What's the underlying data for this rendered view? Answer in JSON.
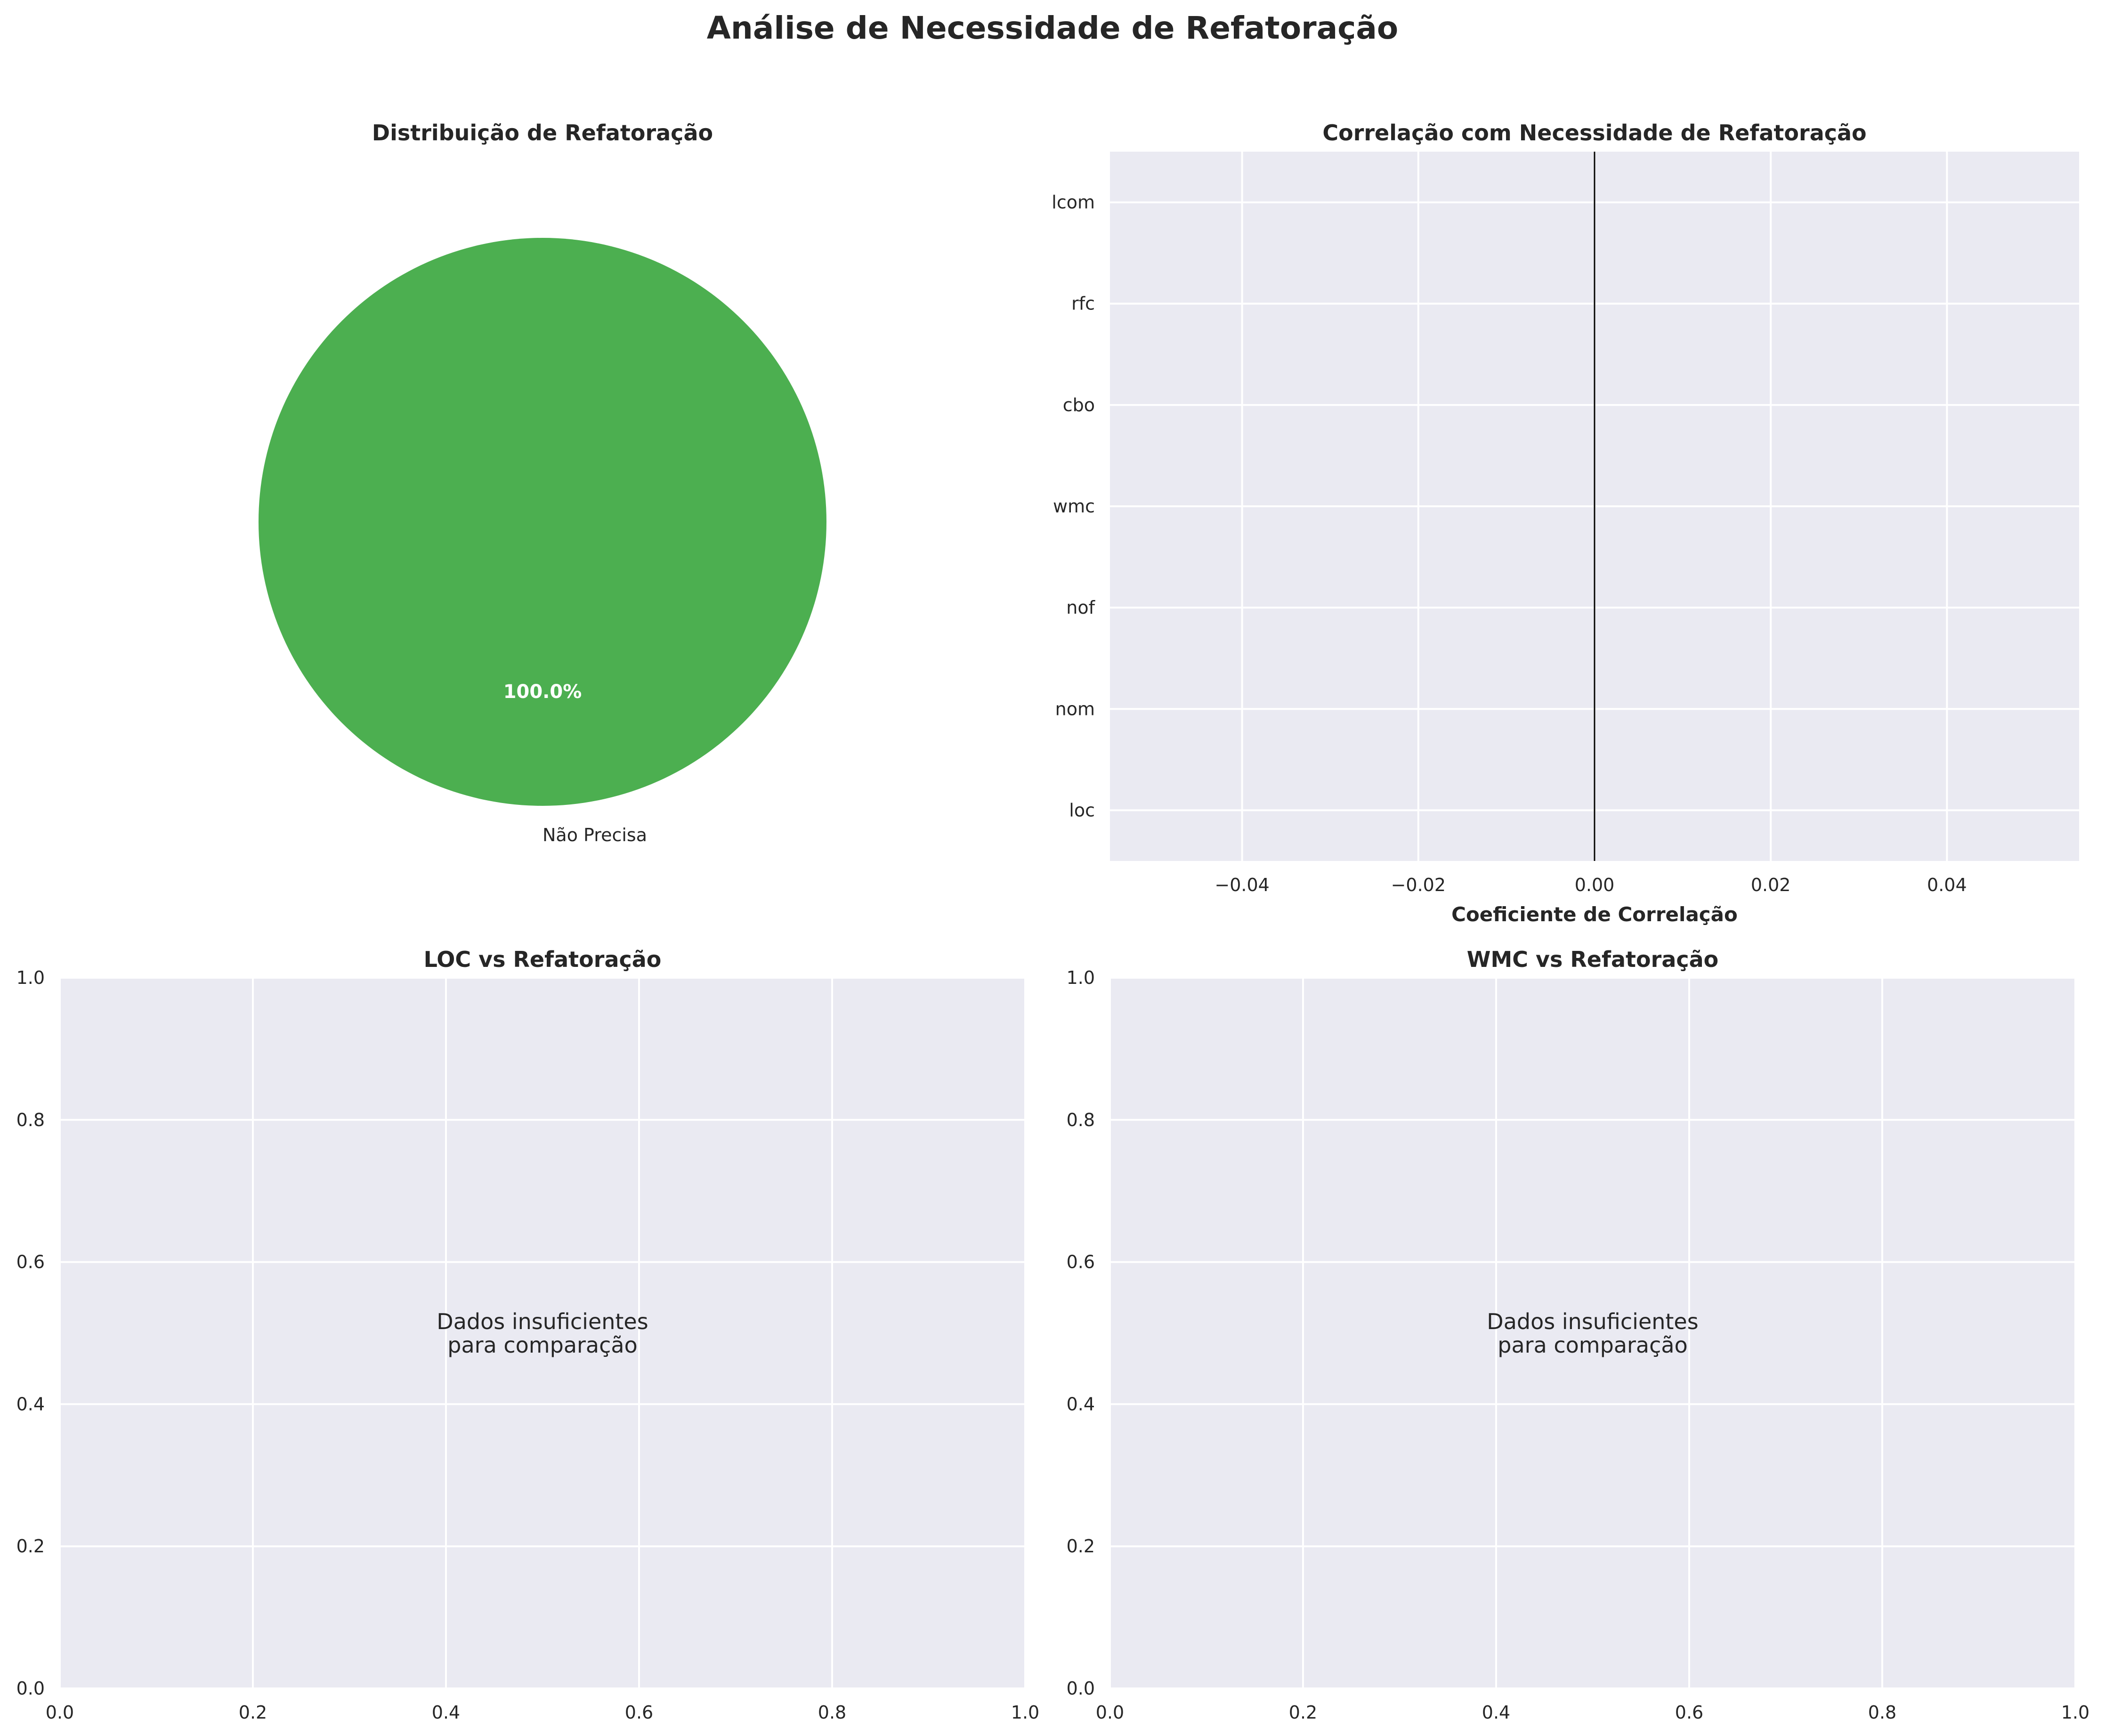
{
  "figure": {
    "title": "Análise de Necessidade de Refatoração"
  },
  "chart_data": [
    {
      "type": "pie",
      "title": "Distribuição de Refatoração",
      "slices": [
        {
          "label": "Não Precisa",
          "value": 100.0,
          "pct_label": "100.0%",
          "color": "#4caf50"
        }
      ]
    },
    {
      "type": "bar",
      "orientation": "horizontal",
      "title": "Correlação com Necessidade de Refatoração",
      "xlabel": "Coeficiente de Correlação",
      "ylabel": "",
      "categories": [
        "loc",
        "nom",
        "nof",
        "wmc",
        "cbo",
        "rfc",
        "lcom"
      ],
      "values": [
        0,
        0,
        0,
        0,
        0,
        0,
        0
      ],
      "xlim": [
        -0.055,
        0.055
      ],
      "xticks": [
        -0.04,
        -0.02,
        0.0,
        0.02,
        0.04
      ],
      "xtick_labels": [
        "−0.04",
        "−0.02",
        "0.00",
        "0.02",
        "0.04"
      ],
      "reference_line": 0,
      "grid": true
    },
    {
      "type": "scatter",
      "title": "LOC vs Refatoração",
      "xlim": [
        0,
        1
      ],
      "ylim": [
        0,
        1
      ],
      "xticks": [
        0.0,
        0.2,
        0.4,
        0.6,
        0.8,
        1.0
      ],
      "yticks": [
        0.0,
        0.2,
        0.4,
        0.6,
        0.8,
        1.0
      ],
      "xtick_labels": [
        "0.0",
        "0.2",
        "0.4",
        "0.6",
        "0.8",
        "1.0"
      ],
      "ytick_labels": [
        "0.0",
        "0.2",
        "0.4",
        "0.6",
        "0.8",
        "1.0"
      ],
      "annotation_line1": "Dados insuficientes",
      "annotation_line2": "para comparação",
      "grid": true
    },
    {
      "type": "scatter",
      "title": "WMC vs Refatoração",
      "xlim": [
        0,
        1
      ],
      "ylim": [
        0,
        1
      ],
      "xticks": [
        0.0,
        0.2,
        0.4,
        0.6,
        0.8,
        1.0
      ],
      "yticks": [
        0.0,
        0.2,
        0.4,
        0.6,
        0.8,
        1.0
      ],
      "xtick_labels": [
        "0.0",
        "0.2",
        "0.4",
        "0.6",
        "0.8",
        "1.0"
      ],
      "ytick_labels": [
        "0.0",
        "0.2",
        "0.4",
        "0.6",
        "0.8",
        "1.0"
      ],
      "annotation_line1": "Dados insuficientes",
      "annotation_line2": "para comparação",
      "grid": true
    }
  ]
}
